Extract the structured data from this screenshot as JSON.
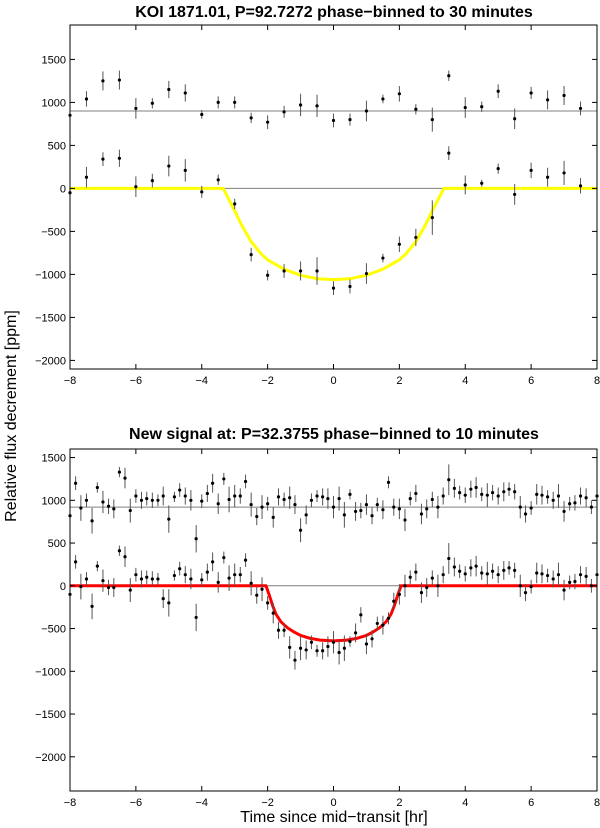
{
  "figure": {
    "ylabel": "Relative flux decrement [ppm]",
    "xlabel": "Time since mid−transit [hr]"
  },
  "chart_data": [
    {
      "type": "scatter",
      "title": "KOI 1871.01, P=92.7272 phase−binned to 30 minutes",
      "xlim": [
        -8,
        8
      ],
      "ylim": [
        -2100,
        1900
      ],
      "xticks": [
        -8,
        -6,
        -4,
        -2,
        0,
        2,
        4,
        6,
        8
      ],
      "yticks": [
        1500,
        1000,
        500,
        0,
        -500,
        -1000,
        -1500,
        -2000
      ],
      "xtick_labels": [
        "−8",
        "−6",
        "−4",
        "−2",
        "0",
        "2",
        "4",
        "6",
        "8"
      ],
      "ytick_labels": [
        "1500",
        "1000",
        "500",
        "0",
        "−500",
        "−1000",
        "−1500",
        "−2000"
      ],
      "reference_lines": [
        0,
        900
      ],
      "offset_series_shift": 900,
      "grid": false,
      "model_color": "#ffff00",
      "series": [
        {
          "role": "residuals_offset",
          "x": [
            -8,
            -7.5,
            -7,
            -6.5,
            -6,
            -5.5,
            -5,
            -4.5,
            -4,
            -3.5,
            -3,
            -2.5,
            -2,
            -1.5,
            -1,
            -0.5,
            0,
            0.5,
            1,
            1.5,
            2,
            2.5,
            3,
            3.5,
            4,
            4.5,
            5,
            5.5,
            6,
            6.5,
            7,
            7.5
          ],
          "y": [
            850,
            1040,
            1250,
            1260,
            930,
            990,
            1150,
            1110,
            860,
            1000,
            1000,
            820,
            770,
            890,
            970,
            960,
            790,
            800,
            900,
            1040,
            1100,
            920,
            800,
            1310,
            940,
            950,
            1130,
            810,
            1110,
            1030,
            1080,
            930
          ],
          "err": [
            80,
            90,
            110,
            110,
            120,
            60,
            100,
            100,
            50,
            70,
            70,
            60,
            80,
            70,
            130,
            130,
            80,
            70,
            120,
            50,
            90,
            60,
            140,
            60,
            120,
            60,
            80,
            120,
            70,
            110,
            110,
            80
          ]
        },
        {
          "role": "data",
          "x": [
            -8,
            -7.5,
            -7,
            -6.5,
            -6,
            -5.5,
            -5,
            -4.5,
            -4,
            -3.5,
            -3,
            -2.5,
            -2,
            -1.5,
            -1,
            -0.5,
            0,
            0.5,
            1,
            1.5,
            2,
            2.5,
            3,
            3.5,
            4,
            4.5,
            5,
            5.5,
            6,
            6.5,
            7,
            7.5
          ],
          "y": [
            -50,
            130,
            340,
            350,
            20,
            90,
            260,
            210,
            -40,
            100,
            -180,
            -770,
            -1010,
            -960,
            -960,
            -960,
            -1160,
            -1140,
            -990,
            -810,
            -650,
            -570,
            -340,
            410,
            40,
            60,
            230,
            -70,
            210,
            130,
            180,
            30
          ],
          "err": [
            120,
            120,
            80,
            100,
            120,
            80,
            120,
            130,
            70,
            60,
            60,
            80,
            60,
            80,
            110,
            160,
            80,
            80,
            120,
            50,
            90,
            100,
            200,
            80,
            110,
            40,
            60,
            120,
            90,
            110,
            140,
            90
          ]
        },
        {
          "role": "model",
          "x": [
            -8,
            -3.35,
            -3.2,
            -3,
            -2.8,
            -2.5,
            -2.2,
            -2,
            -1.5,
            -1,
            -0.5,
            0,
            0.5,
            1,
            1.5,
            2,
            2.2,
            2.5,
            2.8,
            3,
            3.2,
            3.35,
            8
          ],
          "y": [
            0,
            0,
            -110,
            -260,
            -420,
            -620,
            -760,
            -830,
            -940,
            -1010,
            -1050,
            -1060,
            -1050,
            -1010,
            -940,
            -830,
            -760,
            -620,
            -420,
            -260,
            -110,
            0,
            0
          ]
        }
      ]
    },
    {
      "type": "scatter",
      "title": "New signal at: P=32.3755 phase−binned to 10 minutes",
      "xlim": [
        -8,
        8
      ],
      "ylim": [
        -2400,
        1600
      ],
      "xticks": [
        -8,
        -6,
        -4,
        -2,
        0,
        2,
        4,
        6,
        8
      ],
      "yticks": [
        1500,
        1000,
        500,
        0,
        -500,
        -1000,
        -1500,
        -2000
      ],
      "xtick_labels": [
        "−8",
        "−6",
        "−4",
        "−2",
        "0",
        "2",
        "4",
        "6",
        "8"
      ],
      "ytick_labels": [
        "1500",
        "1000",
        "500",
        "0",
        "−500",
        "−1000",
        "−1500",
        "−2000"
      ],
      "reference_lines": [
        0,
        920
      ],
      "offset_series_shift": 920,
      "grid": false,
      "model_color": "#ff0000",
      "series": [
        {
          "role": "residuals_offset",
          "x": [
            -8,
            -7.83,
            -7.67,
            -7.5,
            -7.33,
            -7.17,
            -7,
            -6.83,
            -6.67,
            -6.5,
            -6.33,
            -6.17,
            -6,
            -5.83,
            -5.67,
            -5.5,
            -5.33,
            -5.17,
            -5,
            -4.83,
            -4.67,
            -4.5,
            -4.33,
            -4.17,
            -4,
            -3.83,
            -3.67,
            -3.5,
            -3.33,
            -3.17,
            -3,
            -2.83,
            -2.67,
            -2.5,
            -2.33,
            -2.17,
            -2,
            -1.83,
            -1.67,
            -1.5,
            -1.33,
            -1.17,
            -1,
            -0.83,
            -0.67,
            -0.5,
            -0.33,
            -0.17,
            0,
            0.17,
            0.33,
            0.5,
            0.67,
            0.83,
            1,
            1.17,
            1.33,
            1.5,
            1.67,
            1.83,
            2,
            2.17,
            2.33,
            2.5,
            2.67,
            2.83,
            3,
            3.17,
            3.33,
            3.5,
            3.67,
            3.83,
            4,
            4.17,
            4.33,
            4.5,
            4.67,
            4.83,
            5,
            5.17,
            5.33,
            5.5,
            5.67,
            5.83,
            6,
            6.17,
            6.33,
            6.5,
            6.67,
            6.83,
            7,
            7.17,
            7.33,
            7.5,
            7.67,
            7.83,
            8
          ],
          "y": [
            820,
            1200,
            910,
            1000,
            760,
            1150,
            980,
            930,
            900,
            1330,
            1260,
            880,
            1050,
            1000,
            1020,
            1000,
            1000,
            1050,
            780,
            1040,
            1120,
            1050,
            1000,
            550,
            990,
            1080,
            1200,
            960,
            1250,
            1010,
            1050,
            1050,
            1220,
            950,
            810,
            920,
            960,
            800,
            1040,
            1010,
            1030,
            950,
            650,
            830,
            1000,
            1050,
            1040,
            1020,
            920,
            1020,
            830,
            1070,
            870,
            880,
            950,
            820,
            950,
            890,
            1210,
            920,
            900,
            770,
            1020,
            1080,
            840,
            900,
            1010,
            920,
            1050,
            1240,
            1140,
            1090,
            1060,
            1130,
            1150,
            1070,
            1060,
            1090,
            1050,
            1100,
            1130,
            1100,
            920,
            840,
            910,
            1070,
            1060,
            1040,
            1000,
            1050,
            870,
            960,
            970,
            1050,
            1030,
            920,
            1050
          ],
          "err": [
            120,
            80,
            150,
            80,
            150,
            60,
            130,
            90,
            110,
            60,
            120,
            140,
            80,
            100,
            80,
            90,
            70,
            110,
            160,
            60,
            80,
            100,
            120,
            160,
            80,
            100,
            110,
            120,
            70,
            150,
            130,
            90,
            80,
            140,
            100,
            140,
            80,
            120,
            100,
            80,
            130,
            110,
            140,
            110,
            80,
            70,
            100,
            120,
            130,
            140,
            150,
            60,
            110,
            90,
            120,
            100,
            80,
            110,
            70,
            100,
            120,
            130,
            80,
            100,
            120,
            110,
            90,
            130,
            100,
            180,
            110,
            80,
            90,
            100,
            120,
            80,
            140,
            90,
            100,
            110,
            80,
            90,
            130,
            100,
            80,
            120,
            110,
            80,
            100,
            140,
            120,
            80,
            90,
            100,
            110,
            80,
            120
          ]
        },
        {
          "role": "data",
          "x": [
            -8,
            -7.83,
            -7.67,
            -7.5,
            -7.33,
            -7.17,
            -7,
            -6.83,
            -6.67,
            -6.5,
            -6.33,
            -6.17,
            -6,
            -5.83,
            -5.67,
            -5.5,
            -5.33,
            -5.17,
            -5,
            -4.83,
            -4.67,
            -4.5,
            -4.33,
            -4.17,
            -4,
            -3.83,
            -3.67,
            -3.5,
            -3.33,
            -3.17,
            -3,
            -2.83,
            -2.67,
            -2.5,
            -2.33,
            -2.17,
            -2,
            -1.83,
            -1.67,
            -1.5,
            -1.33,
            -1.17,
            -1,
            -0.83,
            -0.67,
            -0.5,
            -0.33,
            -0.17,
            0,
            0.17,
            0.33,
            0.5,
            0.67,
            0.83,
            1,
            1.17,
            1.33,
            1.5,
            1.67,
            1.83,
            2,
            2.17,
            2.33,
            2.5,
            2.67,
            2.83,
            3,
            3.17,
            3.33,
            3.5,
            3.67,
            3.83,
            4,
            4.17,
            4.33,
            4.5,
            4.67,
            4.83,
            5,
            5.17,
            5.33,
            5.5,
            5.67,
            5.83,
            6,
            6.17,
            6.33,
            6.5,
            6.67,
            6.83,
            7,
            7.17,
            7.33,
            7.5,
            7.67,
            7.83,
            8
          ],
          "y": [
            -100,
            280,
            -10,
            80,
            -240,
            230,
            60,
            -20,
            -20,
            410,
            340,
            -50,
            130,
            80,
            100,
            80,
            80,
            -150,
            -200,
            120,
            200,
            130,
            80,
            -370,
            70,
            160,
            280,
            40,
            330,
            90,
            130,
            130,
            300,
            30,
            -110,
            -40,
            -200,
            -320,
            -520,
            -520,
            -720,
            -870,
            -730,
            -750,
            -660,
            -760,
            -760,
            -710,
            -660,
            -780,
            -730,
            -650,
            -550,
            -340,
            -680,
            -620,
            -440,
            -460,
            -380,
            -180,
            -100,
            0,
            100,
            160,
            -80,
            -20,
            90,
            0,
            130,
            320,
            220,
            170,
            140,
            210,
            230,
            150,
            140,
            170,
            130,
            180,
            210,
            180,
            0,
            -80,
            -10,
            150,
            140,
            120,
            80,
            130,
            -50,
            40,
            50,
            130,
            110,
            0,
            130
          ],
          "err": [
            120,
            80,
            150,
            80,
            150,
            60,
            130,
            90,
            110,
            60,
            120,
            140,
            80,
            100,
            80,
            90,
            70,
            110,
            160,
            60,
            80,
            100,
            120,
            160,
            80,
            100,
            110,
            120,
            70,
            150,
            130,
            90,
            80,
            140,
            100,
            140,
            80,
            120,
            100,
            80,
            130,
            110,
            140,
            110,
            80,
            70,
            100,
            120,
            130,
            140,
            150,
            60,
            110,
            90,
            120,
            100,
            80,
            110,
            70,
            100,
            120,
            130,
            80,
            100,
            120,
            110,
            90,
            130,
            100,
            180,
            110,
            80,
            90,
            100,
            120,
            80,
            140,
            90,
            100,
            110,
            80,
            90,
            130,
            100,
            80,
            120,
            110,
            80,
            100,
            140,
            120,
            80,
            90,
            100,
            110,
            80,
            120
          ]
        },
        {
          "role": "model",
          "x": [
            -8,
            -2.05,
            -1.95,
            -1.85,
            -1.75,
            -1.6,
            -1.4,
            -1.2,
            -1,
            -0.7,
            -0.4,
            0,
            0.4,
            0.7,
            1,
            1.2,
            1.4,
            1.6,
            1.75,
            1.85,
            1.95,
            2.05,
            8
          ],
          "y": [
            0,
            0,
            -110,
            -230,
            -330,
            -420,
            -490,
            -540,
            -580,
            -615,
            -635,
            -645,
            -635,
            -615,
            -580,
            -540,
            -490,
            -420,
            -330,
            -230,
            -110,
            0,
            0
          ]
        }
      ]
    }
  ]
}
